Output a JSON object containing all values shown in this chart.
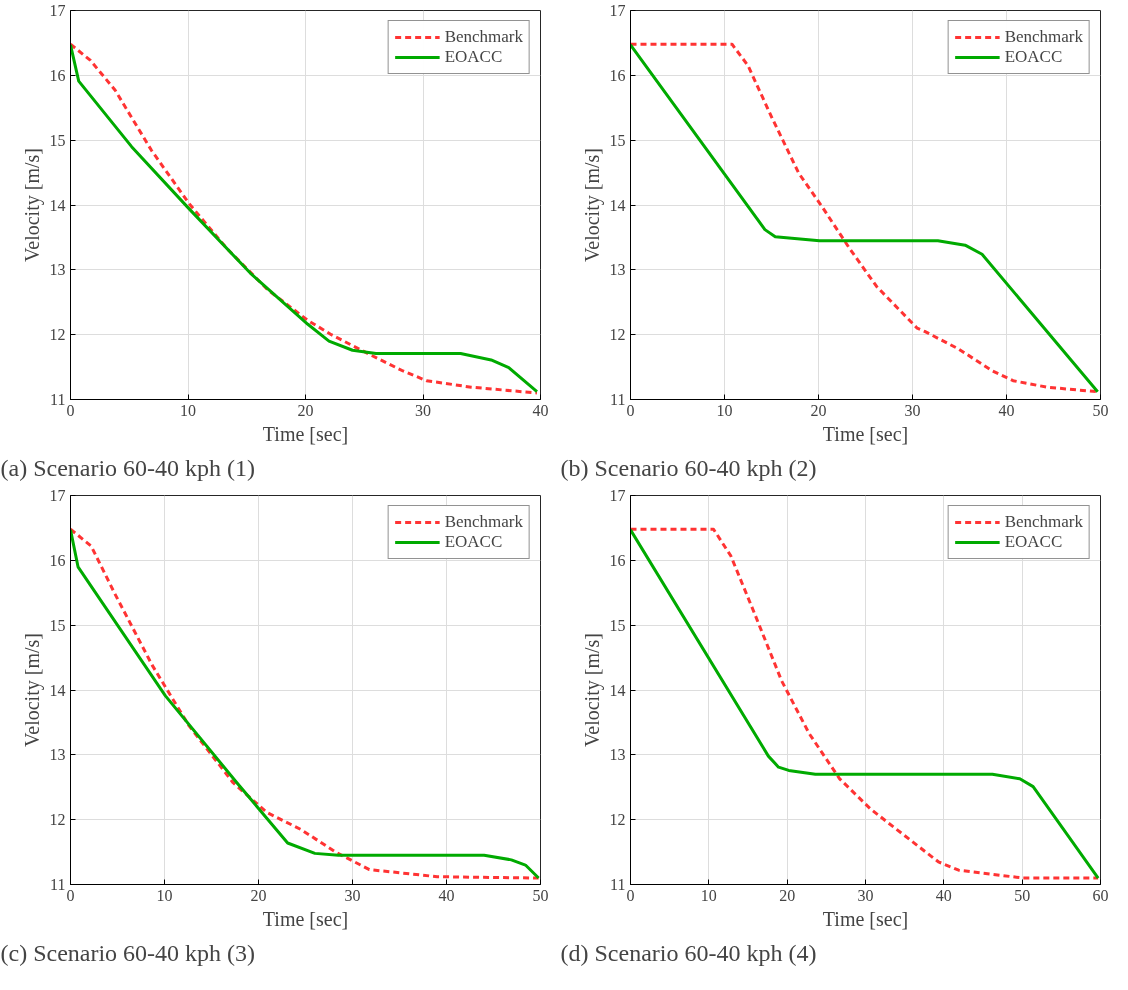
{
  "chart_data": [
    {
      "type": "line",
      "title": "(a) Scenario 60-40 kph (1)",
      "xlabel": "Time [sec]",
      "ylabel": "Velocity [m/s]",
      "xlim": [
        0,
        40
      ],
      "xticks": [
        0,
        10,
        20,
        30,
        40
      ],
      "ylim": [
        11,
        17
      ],
      "yticks": [
        11,
        12,
        13,
        14,
        15,
        16,
        17
      ],
      "grid": true,
      "legend": "top right",
      "series": [
        {
          "name": "Benchmark",
          "color": "#ff3333",
          "line_style": "dashed",
          "x": [
            0,
            1.7,
            3.8,
            6.9,
            10.1,
            13.3,
            16.8,
            20.2,
            22.2,
            25.4,
            28.3,
            30.3,
            34.1,
            39.7
          ],
          "values": [
            16.48,
            16.23,
            15.77,
            14.84,
            14.02,
            13.33,
            12.69,
            12.22,
            12.0,
            11.7,
            11.44,
            11.29,
            11.19,
            11.1
          ]
        },
        {
          "name": "EOACC",
          "color": "#00aa00",
          "line_style": "solid",
          "x": [
            0,
            0.7,
            5.2,
            10.1,
            15.3,
            20.2,
            22.0,
            24.0,
            26.0,
            33.2,
            35.8,
            37.3,
            39.7
          ],
          "values": [
            16.47,
            15.91,
            14.9,
            13.94,
            12.95,
            12.16,
            11.9,
            11.76,
            11.71,
            11.71,
            11.61,
            11.49,
            11.12
          ]
        }
      ]
    },
    {
      "type": "line",
      "title": "(b) Scenario 60-40 kph (2)",
      "xlabel": "Time [sec]",
      "ylabel": "Velocity [m/s]",
      "xlim": [
        0,
        50
      ],
      "xticks": [
        0,
        10,
        20,
        30,
        40,
        50
      ],
      "ylim": [
        11,
        17
      ],
      "yticks": [
        11,
        12,
        13,
        14,
        15,
        16,
        17
      ],
      "grid": true,
      "legend": "top right",
      "series": [
        {
          "name": "Benchmark",
          "color": "#ff3333",
          "line_style": "dashed",
          "x": [
            0,
            10.8,
            12.5,
            15.0,
            17.9,
            20.4,
            23.3,
            26.2,
            30.5,
            31.3,
            34.9,
            38.5,
            40.7,
            44.3,
            49.7
          ],
          "values": [
            16.48,
            16.48,
            16.15,
            15.36,
            14.49,
            13.97,
            13.33,
            12.74,
            12.1,
            12.05,
            11.78,
            11.44,
            11.29,
            11.19,
            11.12
          ]
        },
        {
          "name": "EOACC",
          "color": "#00aa00",
          "line_style": "solid",
          "x": [
            0,
            14.3,
            15.4,
            20.1,
            32.7,
            35.6,
            37.4,
            49.7
          ],
          "values": [
            16.47,
            13.62,
            13.51,
            13.45,
            13.45,
            13.38,
            13.24,
            11.12
          ]
        }
      ]
    },
    {
      "type": "line",
      "title": "(c) Scenario 60-40 kph (3)",
      "xlabel": "Time [sec]",
      "ylabel": "Velocity [m/s]",
      "xlim": [
        0,
        50
      ],
      "xticks": [
        0,
        10,
        20,
        30,
        40,
        50
      ],
      "ylim": [
        11,
        17
      ],
      "yticks": [
        11,
        12,
        13,
        14,
        15,
        16,
        17
      ],
      "grid": true,
      "legend": "top right",
      "series": [
        {
          "name": "Benchmark",
          "color": "#ff3333",
          "line_style": "dashed",
          "x": [
            0,
            2.2,
            4.7,
            8.7,
            12.6,
            17.3,
            20.9,
            24.5,
            28.2,
            31.8,
            39.0,
            49.8
          ],
          "values": [
            16.48,
            16.22,
            15.49,
            14.38,
            13.45,
            12.57,
            12.11,
            11.85,
            11.5,
            11.23,
            11.12,
            11.1
          ]
        },
        {
          "name": "EOACC",
          "color": "#00aa00",
          "line_style": "solid",
          "x": [
            0,
            0.8,
            10.1,
            17.7,
            23.1,
            26.0,
            28.5,
            44.0,
            46.9,
            48.4,
            49.8
          ],
          "values": [
            16.47,
            15.9,
            13.91,
            12.57,
            11.64,
            11.48,
            11.45,
            11.45,
            11.38,
            11.3,
            11.1
          ]
        }
      ]
    },
    {
      "type": "line",
      "title": "(d) Scenario 60-40 kph (4)",
      "xlabel": "Time [sec]",
      "ylabel": "Velocity [m/s]",
      "xlim": [
        0,
        60
      ],
      "xticks": [
        0,
        10,
        20,
        30,
        40,
        50,
        60
      ],
      "ylim": [
        11,
        17
      ],
      "yticks": [
        11,
        12,
        13,
        14,
        15,
        16,
        17
      ],
      "grid": true,
      "legend": "top right",
      "series": [
        {
          "name": "Benchmark",
          "color": "#ff3333",
          "line_style": "dashed",
          "x": [
            0,
            10.6,
            12.8,
            15.8,
            19.3,
            22.8,
            26.7,
            30.6,
            32.8,
            39.3,
            41.9,
            50.1,
            59.7
          ],
          "values": [
            16.48,
            16.48,
            16.07,
            15.19,
            14.14,
            13.33,
            12.63,
            12.17,
            11.96,
            11.35,
            11.22,
            11.1,
            11.1
          ]
        },
        {
          "name": "EOACC",
          "color": "#00aa00",
          "line_style": "solid",
          "x": [
            0,
            17.6,
            18.9,
            20.2,
            23.6,
            46.2,
            49.7,
            51.4,
            59.7
          ],
          "values": [
            16.47,
            12.98,
            12.81,
            12.76,
            12.7,
            12.7,
            12.63,
            12.51,
            11.1
          ]
        }
      ]
    }
  ]
}
